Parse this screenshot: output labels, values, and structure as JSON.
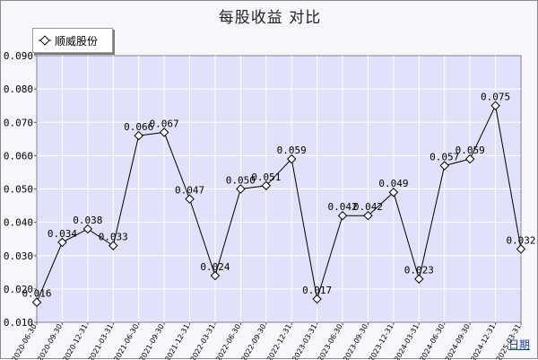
{
  "chart_data": {
    "type": "line",
    "title": "每股收益  对比",
    "xlabel": "日期",
    "ylabel": "",
    "ylim": [
      0.01,
      0.09
    ],
    "yticks": [
      "0.010",
      "0.020",
      "0.030",
      "0.040",
      "0.050",
      "0.060",
      "0.070",
      "0.080",
      "0.090"
    ],
    "grid": true,
    "legend_position": "top-left",
    "categories": [
      "2020-06-30",
      "2020-09-30",
      "2020-12-31",
      "2021-03-31",
      "2021-06-30",
      "2021-09-30",
      "2021-12-31",
      "2022-03-31",
      "2022-06-30",
      "2022-09-30",
      "2022-12-31",
      "2023-03-31",
      "2023-06-30",
      "2023-09-30",
      "2023-12-31",
      "2024-03-31",
      "2024-06-30",
      "2024-09-30",
      "2024-12-31",
      "2025-03-31"
    ],
    "series": [
      {
        "name": "顺威股份",
        "values": [
          0.016,
          0.034,
          0.038,
          0.033,
          0.066,
          0.067,
          0.047,
          0.024,
          0.05,
          0.051,
          0.059,
          0.017,
          0.042,
          0.042,
          0.049,
          0.023,
          0.057,
          0.059,
          0.075,
          0.032
        ],
        "labels": [
          "0.016",
          "0.034",
          "0.038",
          "0.033",
          "0.066",
          "0.067",
          "0.047",
          "0.024",
          "0.050",
          "0.051",
          "0.059",
          "0.017",
          "0.042",
          "0.042",
          "0.049",
          "0.023",
          "0.057",
          "0.059",
          "0.075",
          "0.032"
        ]
      }
    ],
    "colors": {
      "plot_bg": "#dfe2f8",
      "grid": "#ffffff",
      "line": "#000000",
      "marker_fill": "#ffffff",
      "axis_label": "#1a3aa8"
    }
  }
}
